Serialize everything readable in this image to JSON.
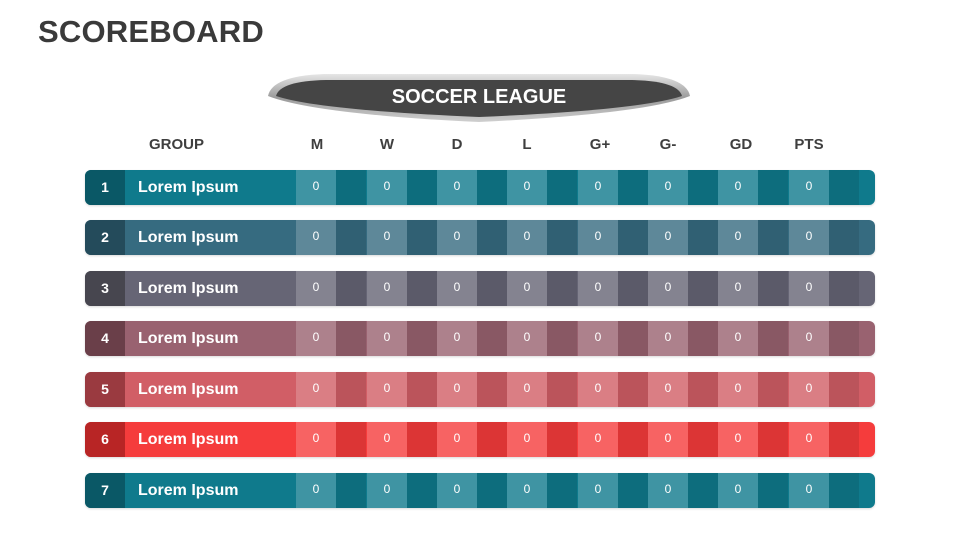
{
  "title": "SCOREBOARD",
  "banner": "SOCCER LEAGUE",
  "headers": {
    "group": "GROUP",
    "cols": [
      "M",
      "W",
      "D",
      "L",
      "G+",
      "G-",
      "GD",
      "PTS"
    ]
  },
  "rows": [
    {
      "rank": "1",
      "name": "Lorem Ipsum",
      "values": [
        "0",
        "0",
        "0",
        "0",
        "0",
        "0",
        "0",
        "0"
      ],
      "color": "#0f7a8c",
      "rank_color": "#0a5866"
    },
    {
      "rank": "2",
      "name": "Lorem Ipsum",
      "values": [
        "0",
        "0",
        "0",
        "0",
        "0",
        "0",
        "0",
        "0"
      ],
      "color": "#366b80",
      "rank_color": "#244b5b"
    },
    {
      "rank": "3",
      "name": "Lorem Ipsum",
      "values": [
        "0",
        "0",
        "0",
        "0",
        "0",
        "0",
        "0",
        "0"
      ],
      "color": "#666575",
      "rank_color": "#47464f"
    },
    {
      "rank": "4",
      "name": "Lorem Ipsum",
      "values": [
        "0",
        "0",
        "0",
        "0",
        "0",
        "0",
        "0",
        "0"
      ],
      "color": "#996270",
      "rank_color": "#6a3f49"
    },
    {
      "rank": "5",
      "name": "Lorem Ipsum",
      "values": [
        "0",
        "0",
        "0",
        "0",
        "0",
        "0",
        "0",
        "0"
      ],
      "color": "#d15e66",
      "rank_color": "#9a3a40"
    },
    {
      "rank": "6",
      "name": "Lorem Ipsum",
      "values": [
        "0",
        "0",
        "0",
        "0",
        "0",
        "0",
        "0",
        "0"
      ],
      "color": "#f53c3c",
      "rank_color": "#b82525"
    },
    {
      "rank": "7",
      "name": "Lorem Ipsum",
      "values": [
        "0",
        "0",
        "0",
        "0",
        "0",
        "0",
        "0",
        "0"
      ],
      "color": "#0f7a8c",
      "rank_color": "#0a5866"
    }
  ]
}
